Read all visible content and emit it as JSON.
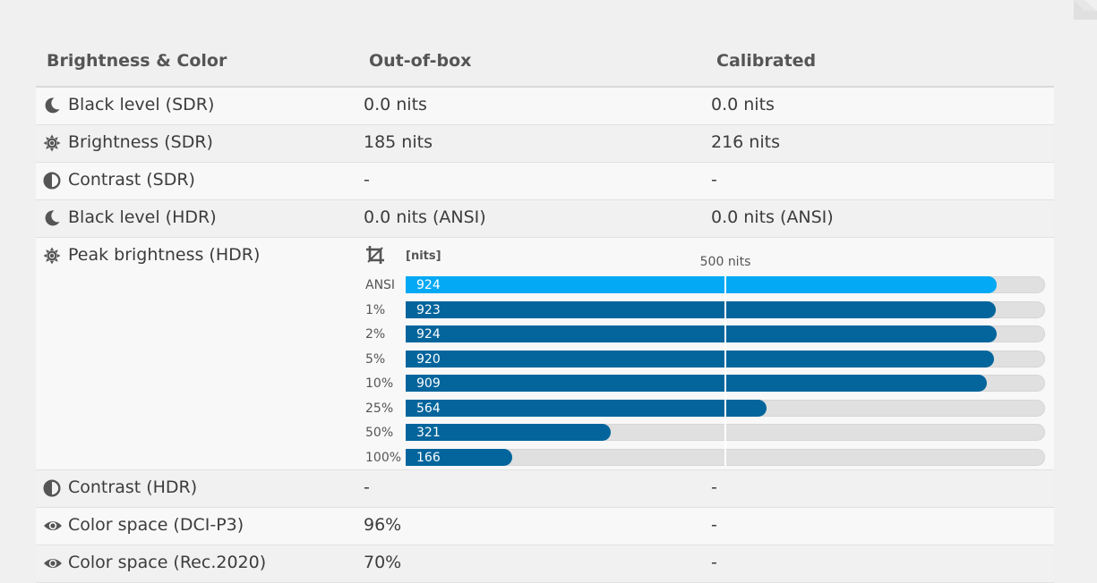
{
  "header": {
    "col1": "Brightness & Color",
    "col2": "Out-of-box",
    "col3": "Calibrated"
  },
  "rows": [
    {
      "label": "Black level (SDR)",
      "icon": "moon-icon",
      "out": "0.0 nits",
      "cal": "0.0 nits"
    },
    {
      "label": "Brightness (SDR)",
      "icon": "sun-icon",
      "out": "185 nits",
      "cal": "216 nits"
    },
    {
      "label": "Contrast (SDR)",
      "icon": "contrast-icon",
      "out": "-",
      "cal": "-"
    },
    {
      "label": "Black level (HDR)",
      "icon": "moon-icon",
      "out": "0.0 nits (ANSI)",
      "cal": "0.0 nits (ANSI)"
    },
    {
      "label": "Peak brightness (HDR)",
      "icon": "sun-icon"
    },
    {
      "label": "Contrast (HDR)",
      "icon": "contrast-icon",
      "out": "-",
      "cal": "-"
    },
    {
      "label": "Color space (DCI-P3)",
      "icon": "eye-icon",
      "out": "96%",
      "cal": "-"
    },
    {
      "label": "Color space (Rec.2020)",
      "icon": "eye-icon",
      "out": "70%",
      "cal": "-"
    }
  ],
  "peak_chart": {
    "unit_label": "[nits]",
    "icon": "crop-icon",
    "reference": {
      "value": 500,
      "label": "500 nits"
    },
    "max": 1000,
    "colors": {
      "highlight": "#03a9f4",
      "normal": "#03659c",
      "track": "#e0e0e0"
    },
    "bars": [
      {
        "label": "ANSI",
        "value": 924,
        "value_text": "924",
        "highlight": true
      },
      {
        "label": "1%",
        "value": 923,
        "value_text": "923"
      },
      {
        "label": "2%",
        "value": 924,
        "value_text": "924"
      },
      {
        "label": "5%",
        "value": 920,
        "value_text": "920"
      },
      {
        "label": "10%",
        "value": 909,
        "value_text": "909"
      },
      {
        "label": "25%",
        "value": 564,
        "value_text": "564"
      },
      {
        "label": "50%",
        "value": 321,
        "value_text": "321"
      },
      {
        "label": "100%",
        "value": 166,
        "value_text": "166"
      }
    ]
  }
}
